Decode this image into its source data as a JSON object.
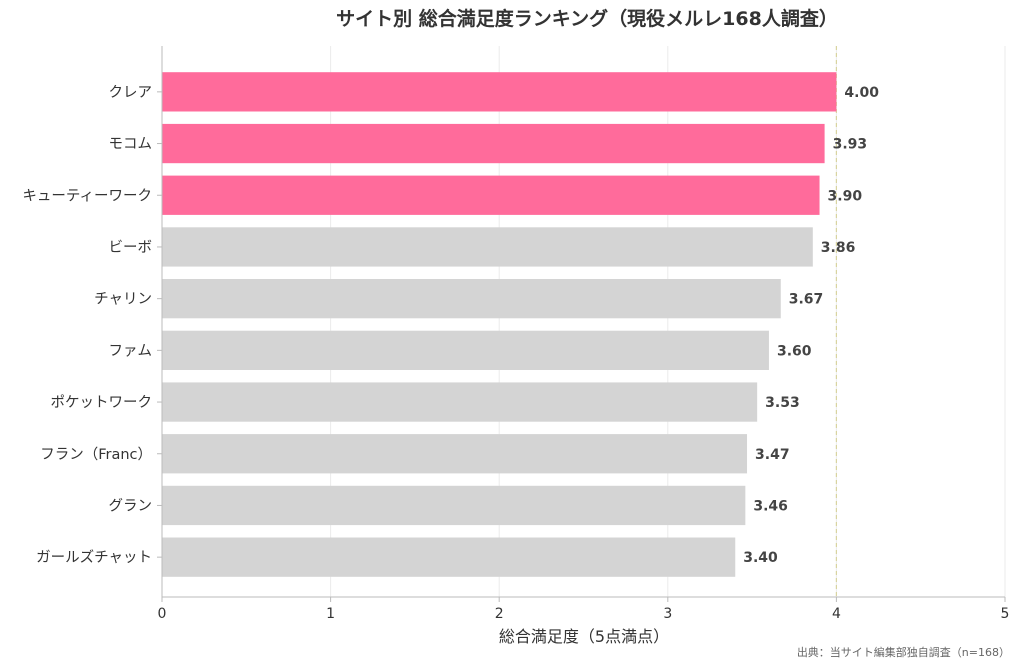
{
  "chart_data": {
    "type": "bar",
    "orientation": "horizontal",
    "title": "サイト別 総合満足度ランキング（現役メルレ168人調査）",
    "xlabel": "総合満足度（5点満点）",
    "ylabel": "",
    "xlim": [
      0,
      5
    ],
    "x_ticks": [
      "0",
      "1",
      "2",
      "3",
      "4",
      "5"
    ],
    "grid": "vertical",
    "reference_line": {
      "x": 4.0,
      "color": "#d9d4a0",
      "style": "dashed"
    },
    "categories": [
      "クレア",
      "モコム",
      "キューティーワーク",
      "ビーボ",
      "チャリン",
      "ファム",
      "ポケットワーク",
      "フラン（Franc）",
      "グラン",
      "ガールズチャット"
    ],
    "values": [
      4.0,
      3.93,
      3.9,
      3.86,
      3.67,
      3.6,
      3.53,
      3.47,
      3.46,
      3.4
    ],
    "value_labels": [
      "4.00",
      "3.93",
      "3.90",
      "3.86",
      "3.67",
      "3.60",
      "3.53",
      "3.47",
      "3.46",
      "3.40"
    ],
    "highlight_count": 3,
    "colors": {
      "highlight": "#ff6b9b",
      "default": "#d4d4d4",
      "grid": "#ebebeb",
      "axis": "#bbbbbb"
    },
    "source": "出典：当サイト編集部独自調査（n=168）"
  }
}
